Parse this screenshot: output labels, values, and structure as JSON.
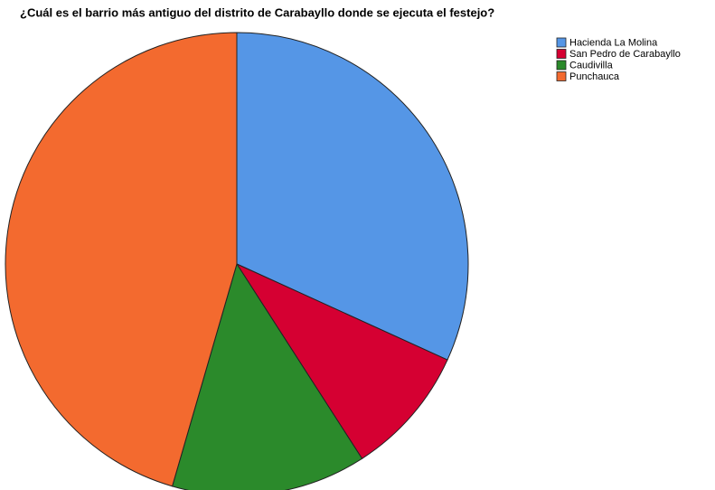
{
  "chart_data": {
    "type": "pie",
    "title": "¿Cuál es el barrio más antiguo del distrito de Carabayllo donde se ejecuta el festejo?",
    "categories": [
      "Hacienda La Molina",
      "San Pedro de Carabayllo",
      "Caudivilla",
      "Punchauca"
    ],
    "values": [
      31.8,
      9.1,
      13.6,
      45.5
    ],
    "colors": [
      "#5596e6",
      "#d50032",
      "#2b8a2b",
      "#f36a2f"
    ],
    "legend": "top-right"
  }
}
